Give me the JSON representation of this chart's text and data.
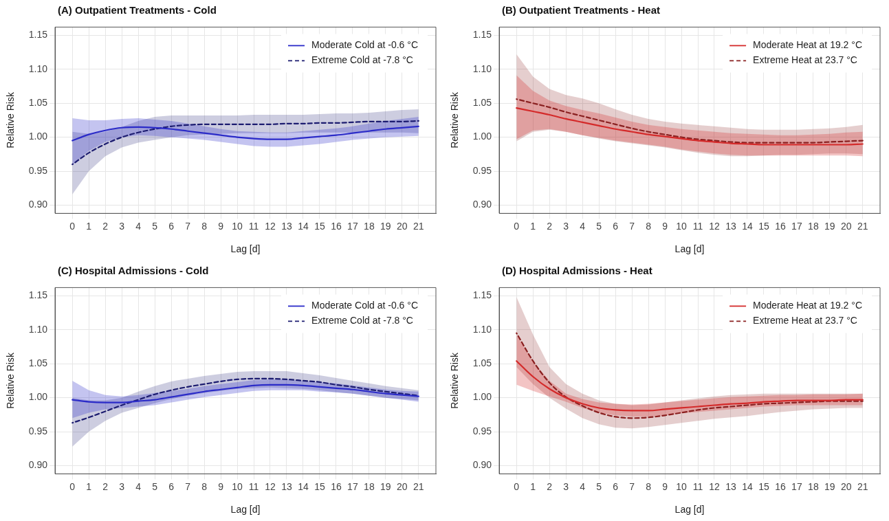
{
  "chart_data": [
    {
      "type": "line",
      "title": "(A) Outpatient Treatments - Cold",
      "xlabel": "Lag [d]",
      "ylabel": "Relative Risk",
      "x": [
        0,
        1,
        2,
        3,
        4,
        5,
        6,
        7,
        8,
        9,
        10,
        11,
        12,
        13,
        14,
        15,
        16,
        17,
        18,
        19,
        20,
        21
      ],
      "xlim": [
        -1.05,
        22.05
      ],
      "ylim": [
        0.888,
        1.162
      ],
      "xticks": [
        0,
        1,
        2,
        3,
        4,
        5,
        6,
        7,
        8,
        9,
        10,
        11,
        12,
        13,
        14,
        15,
        16,
        17,
        18,
        19,
        20,
        21
      ],
      "yticks": [
        {
          "value": 0.9,
          "label": "0.90"
        },
        {
          "value": 0.95,
          "label": "0.95"
        },
        {
          "value": 1,
          "label": "1.00"
        },
        {
          "value": 1.05,
          "label": "1.05"
        },
        {
          "value": 1.1,
          "label": "1.10"
        },
        {
          "value": 1.15,
          "label": "1.15"
        }
      ],
      "grid": true,
      "legend": "top right",
      "series": [
        {
          "name": "Moderate Cold at -0.6 °C",
          "color": "#2b2bc8",
          "line_style": "solid",
          "values": [
            0.995,
            1.004,
            1.01,
            1.014,
            1.015,
            1.014,
            1.012,
            1.009,
            1.006,
            1.003,
            1.0,
            0.998,
            0.997,
            0.997,
            0.999,
            1.001,
            1.003,
            1.006,
            1.009,
            1.012,
            1.014,
            1.016
          ],
          "lower": [
            0.96,
            0.98,
            0.993,
            1.0,
            1.003,
            1.002,
            1.0,
            0.998,
            0.996,
            0.993,
            0.99,
            0.987,
            0.986,
            0.986,
            0.988,
            0.99,
            0.993,
            0.996,
            0.998,
            1.0,
            1.001,
            1.002
          ],
          "upper": [
            1.028,
            1.025,
            1.025,
            1.027,
            1.028,
            1.026,
            1.024,
            1.02,
            1.016,
            1.012,
            1.009,
            1.008,
            1.007,
            1.007,
            1.009,
            1.011,
            1.013,
            1.016,
            1.02,
            1.024,
            1.027,
            1.03
          ]
        },
        {
          "name": "Extreme Cold at -7.8 °C",
          "color": "#1c1c70",
          "line_style": "dashed",
          "values": [
            0.96,
            0.977,
            0.99,
            1.0,
            1.007,
            1.012,
            1.016,
            1.018,
            1.019,
            1.019,
            1.019,
            1.019,
            1.019,
            1.02,
            1.02,
            1.021,
            1.021,
            1.022,
            1.023,
            1.023,
            1.023,
            1.024
          ],
          "lower": [
            0.916,
            0.95,
            0.972,
            0.985,
            0.992,
            0.996,
            1.0,
            1.003,
            1.004,
            1.005,
            1.006,
            1.006,
            1.006,
            1.006,
            1.007,
            1.007,
            1.007,
            1.007,
            1.007,
            1.007,
            1.007,
            1.006
          ],
          "upper": [
            1.008,
            1.005,
            1.008,
            1.015,
            1.024,
            1.03,
            1.032,
            1.032,
            1.032,
            1.032,
            1.032,
            1.033,
            1.033,
            1.033,
            1.033,
            1.034,
            1.035,
            1.035,
            1.036,
            1.038,
            1.04,
            1.041
          ]
        }
      ]
    },
    {
      "type": "line",
      "title": "(B) Outpatient Treatments - Heat",
      "xlabel": "Lag [d]",
      "ylabel": "Relative Risk",
      "x": [
        0,
        1,
        2,
        3,
        4,
        5,
        6,
        7,
        8,
        9,
        10,
        11,
        12,
        13,
        14,
        15,
        16,
        17,
        18,
        19,
        20,
        21
      ],
      "xlim": [
        -1.05,
        22.05
      ],
      "ylim": [
        0.888,
        1.162
      ],
      "xticks": [
        0,
        1,
        2,
        3,
        4,
        5,
        6,
        7,
        8,
        9,
        10,
        11,
        12,
        13,
        14,
        15,
        16,
        17,
        18,
        19,
        20,
        21
      ],
      "yticks": [
        {
          "value": 0.9,
          "label": "0.90"
        },
        {
          "value": 0.95,
          "label": "0.95"
        },
        {
          "value": 1,
          "label": "1.00"
        },
        {
          "value": 1.05,
          "label": "1.05"
        },
        {
          "value": 1.1,
          "label": "1.10"
        },
        {
          "value": 1.15,
          "label": "1.15"
        }
      ],
      "grid": true,
      "legend": "top right",
      "series": [
        {
          "name": "Moderate Heat at 19.2 °C",
          "color": "#d42a2a",
          "line_style": "solid",
          "values": [
            1.043,
            1.038,
            1.033,
            1.027,
            1.022,
            1.017,
            1.012,
            1.008,
            1.004,
            1.001,
            0.998,
            0.995,
            0.993,
            0.991,
            0.99,
            0.989,
            0.989,
            0.989,
            0.989,
            0.989,
            0.989,
            0.99
          ],
          "lower": [
            0.997,
            1.01,
            1.012,
            1.008,
            1.003,
            0.999,
            0.995,
            0.992,
            0.989,
            0.986,
            0.982,
            0.979,
            0.976,
            0.974,
            0.973,
            0.973,
            0.973,
            0.973,
            0.973,
            0.973,
            0.973,
            0.972
          ],
          "upper": [
            1.091,
            1.068,
            1.054,
            1.046,
            1.04,
            1.035,
            1.029,
            1.023,
            1.018,
            1.015,
            1.012,
            1.01,
            1.008,
            1.006,
            1.005,
            1.004,
            1.003,
            1.003,
            1.004,
            1.005,
            1.007,
            1.008
          ]
        },
        {
          "name": "Extreme Heat at 23.7 °C",
          "color": "#8a2020",
          "line_style": "dashed",
          "values": [
            1.056,
            1.05,
            1.044,
            1.037,
            1.031,
            1.025,
            1.019,
            1.013,
            1.008,
            1.004,
            1.0,
            0.997,
            0.995,
            0.993,
            0.992,
            0.992,
            0.992,
            0.992,
            0.992,
            0.993,
            0.994,
            0.995
          ],
          "lower": [
            0.994,
            1.008,
            1.011,
            1.008,
            1.003,
            0.998,
            0.994,
            0.991,
            0.988,
            0.985,
            0.981,
            0.977,
            0.974,
            0.972,
            0.972,
            0.973,
            0.974,
            0.974,
            0.975,
            0.976,
            0.976,
            0.975
          ],
          "upper": [
            1.122,
            1.089,
            1.071,
            1.062,
            1.057,
            1.05,
            1.041,
            1.033,
            1.027,
            1.023,
            1.02,
            1.018,
            1.016,
            1.014,
            1.012,
            1.011,
            1.011,
            1.011,
            1.012,
            1.013,
            1.015,
            1.018
          ]
        }
      ]
    },
    {
      "type": "line",
      "title": "(C) Hospital Admissions - Cold",
      "xlabel": "Lag [d]",
      "ylabel": "Relative Risk",
      "x": [
        0,
        1,
        2,
        3,
        4,
        5,
        6,
        7,
        8,
        9,
        10,
        11,
        12,
        13,
        14,
        15,
        16,
        17,
        18,
        19,
        20,
        21
      ],
      "xlim": [
        -1.05,
        22.05
      ],
      "ylim": [
        0.888,
        1.162
      ],
      "xticks": [
        0,
        1,
        2,
        3,
        4,
        5,
        6,
        7,
        8,
        9,
        10,
        11,
        12,
        13,
        14,
        15,
        16,
        17,
        18,
        19,
        20,
        21
      ],
      "yticks": [
        {
          "value": 0.9,
          "label": "0.90"
        },
        {
          "value": 0.95,
          "label": "0.95"
        },
        {
          "value": 1,
          "label": "1.00"
        },
        {
          "value": 1.05,
          "label": "1.05"
        },
        {
          "value": 1.1,
          "label": "1.10"
        },
        {
          "value": 1.15,
          "label": "1.15"
        }
      ],
      "grid": true,
      "legend": "top right",
      "series": [
        {
          "name": "Moderate Cold at -0.6 °C",
          "color": "#2b2bc8",
          "line_style": "solid",
          "values": [
            0.997,
            0.994,
            0.993,
            0.993,
            0.995,
            0.997,
            1.001,
            1.005,
            1.009,
            1.012,
            1.015,
            1.018,
            1.019,
            1.019,
            1.018,
            1.016,
            1.014,
            1.012,
            1.009,
            1.006,
            1.004,
            1.002
          ],
          "lower": [
            0.97,
            0.978,
            0.983,
            0.985,
            0.987,
            0.989,
            0.993,
            0.997,
            1.001,
            1.004,
            1.007,
            1.01,
            1.011,
            1.011,
            1.011,
            1.009,
            1.008,
            1.006,
            1.003,
            1.0,
            0.997,
            0.994
          ],
          "upper": [
            1.025,
            1.011,
            1.004,
            1.002,
            1.004,
            1.007,
            1.01,
            1.013,
            1.017,
            1.02,
            1.023,
            1.026,
            1.027,
            1.027,
            1.025,
            1.023,
            1.021,
            1.018,
            1.015,
            1.012,
            1.01,
            1.009
          ]
        },
        {
          "name": "Extreme Cold at -7.8 °C",
          "color": "#1c1c70",
          "line_style": "dashed",
          "values": [
            0.963,
            0.971,
            0.98,
            0.989,
            0.997,
            1.005,
            1.011,
            1.016,
            1.02,
            1.024,
            1.027,
            1.028,
            1.028,
            1.027,
            1.025,
            1.023,
            1.019,
            1.016,
            1.012,
            1.009,
            1.006,
            1.003
          ],
          "lower": [
            0.928,
            0.95,
            0.966,
            0.978,
            0.985,
            0.992,
            0.998,
            1.003,
            1.007,
            1.01,
            1.013,
            1.014,
            1.015,
            1.014,
            1.013,
            1.011,
            1.008,
            1.006,
            1.003,
            1.0,
            0.998,
            0.996
          ],
          "upper": [
            1.0,
            0.996,
            0.996,
            1.0,
            1.009,
            1.017,
            1.024,
            1.028,
            1.032,
            1.035,
            1.038,
            1.039,
            1.039,
            1.039,
            1.036,
            1.033,
            1.029,
            1.025,
            1.021,
            1.017,
            1.014,
            1.011
          ]
        }
      ]
    },
    {
      "type": "line",
      "title": "(D) Hospital Admissions - Heat",
      "xlabel": "Lag [d]",
      "ylabel": "Relative Risk",
      "x": [
        0,
        1,
        2,
        3,
        4,
        5,
        6,
        7,
        8,
        9,
        10,
        11,
        12,
        13,
        14,
        15,
        16,
        17,
        18,
        19,
        20,
        21
      ],
      "xlim": [
        -1.05,
        22.05
      ],
      "ylim": [
        0.888,
        1.162
      ],
      "xticks": [
        0,
        1,
        2,
        3,
        4,
        5,
        6,
        7,
        8,
        9,
        10,
        11,
        12,
        13,
        14,
        15,
        16,
        17,
        18,
        19,
        20,
        21
      ],
      "yticks": [
        {
          "value": 0.9,
          "label": "0.90"
        },
        {
          "value": 0.95,
          "label": "0.95"
        },
        {
          "value": 1,
          "label": "1.00"
        },
        {
          "value": 1.05,
          "label": "1.05"
        },
        {
          "value": 1.1,
          "label": "1.10"
        },
        {
          "value": 1.15,
          "label": "1.15"
        }
      ],
      "grid": true,
      "legend": "top right",
      "series": [
        {
          "name": "Moderate Heat at 19.2 °C",
          "color": "#d42a2a",
          "line_style": "solid",
          "values": [
            1.054,
            1.031,
            1.013,
            1.0,
            0.991,
            0.985,
            0.982,
            0.981,
            0.981,
            0.983,
            0.985,
            0.987,
            0.989,
            0.991,
            0.992,
            0.994,
            0.995,
            0.996,
            0.996,
            0.996,
            0.997,
            0.997
          ],
          "lower": [
            1.019,
            1.01,
            1.002,
            0.994,
            0.985,
            0.978,
            0.974,
            0.972,
            0.972,
            0.974,
            0.977,
            0.979,
            0.981,
            0.983,
            0.985,
            0.987,
            0.988,
            0.989,
            0.989,
            0.989,
            0.989,
            0.989
          ],
          "upper": [
            1.092,
            1.053,
            1.025,
            1.006,
            0.998,
            0.993,
            0.991,
            0.99,
            0.991,
            0.993,
            0.995,
            0.997,
            0.999,
            1.001,
            1.002,
            1.003,
            1.004,
            1.004,
            1.005,
            1.005,
            1.005,
            1.006
          ]
        },
        {
          "name": "Extreme Heat at 23.7 °C",
          "color": "#8a2020",
          "line_style": "dashed",
          "values": [
            1.095,
            1.054,
            1.022,
            1.001,
            0.988,
            0.978,
            0.972,
            0.97,
            0.971,
            0.974,
            0.978,
            0.982,
            0.985,
            0.987,
            0.989,
            0.991,
            0.992,
            0.993,
            0.994,
            0.995,
            0.995,
            0.995
          ],
          "lower": [
            1.045,
            1.02,
            1.0,
            0.984,
            0.97,
            0.961,
            0.956,
            0.955,
            0.957,
            0.96,
            0.963,
            0.966,
            0.969,
            0.971,
            0.973,
            0.976,
            0.979,
            0.981,
            0.983,
            0.984,
            0.985,
            0.985
          ],
          "upper": [
            1.148,
            1.093,
            1.045,
            1.02,
            1.006,
            0.996,
            0.991,
            0.989,
            0.99,
            0.993,
            0.996,
            0.999,
            1.002,
            1.004,
            1.005,
            1.006,
            1.006,
            1.006,
            1.006,
            1.006,
            1.006,
            1.006
          ]
        }
      ]
    }
  ]
}
